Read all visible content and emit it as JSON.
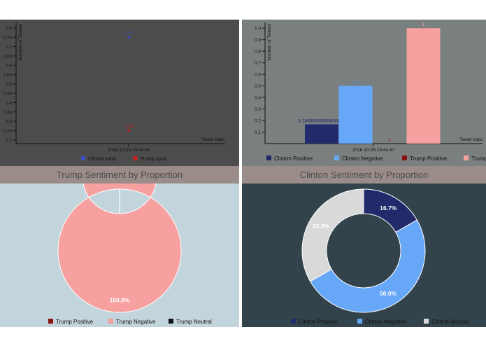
{
  "colors": {
    "clinton_total": "#3b4fc4",
    "trump_total": "#c42020",
    "clinton_positive": "#232a6c",
    "clinton_negative": "#66a8f7",
    "clinton_neutral": "#d9d9d9",
    "trump_positive": "#8b1212",
    "trump_negative": "#f7a0a0",
    "trump_neutral": "#111111"
  },
  "chart_data": [
    {
      "type": "scatter",
      "ylabel": "Number of Tweets",
      "xlabel": "Tweet topic",
      "x_ticks": [
        "2016-10-09 10:44:46"
      ],
      "y_ticks": [
        "0.2",
        "0.25",
        "0.3",
        "0.35",
        "0.4",
        "0.45",
        "0.5",
        "0.55",
        "0.6",
        "0.65",
        "0.7",
        "0.75",
        "0.8"
      ],
      "ylim": [
        0.18,
        0.83
      ],
      "series": [
        {
          "name": "Clinton total",
          "values": [
            0.75
          ],
          "label": "0.75"
        },
        {
          "name": "Trump total",
          "values": [
            0.25
          ],
          "label": "0.25"
        }
      ],
      "legend": "bottom"
    },
    {
      "type": "bar",
      "ylabel": "Number of Tweets",
      "xlabel": "Tweet topic",
      "x_ticks": [
        "2016-10-09 10:44:47"
      ],
      "y_ticks": [
        "0.1",
        "0.2",
        "0.3",
        "0.4",
        "0.5",
        "0.6",
        "0.7",
        "0.8",
        "0.9",
        "1.0"
      ],
      "ylim": [
        0,
        1.05
      ],
      "series": [
        {
          "name": "Clinton Positive",
          "values": [
            0.16666666666666666
          ],
          "label": "0.16666666666666666"
        },
        {
          "name": "Clinton Negative",
          "values": [
            0.5
          ],
          "label": "0.5"
        },
        {
          "name": "Trump Positive",
          "values": [
            0
          ],
          "label": "0"
        },
        {
          "name": "Trump Negative",
          "values": [
            1
          ],
          "label": "1"
        }
      ],
      "legend": "bottom"
    },
    {
      "type": "pie",
      "title": "Trump Sentiment by Proportion",
      "categories": [
        "Trump Positive",
        "Trump Negative",
        "Trump Neutral"
      ],
      "values": [
        0,
        100,
        0
      ],
      "labels": [
        "",
        "100.0%",
        ""
      ],
      "legend": "bottom"
    },
    {
      "type": "pie",
      "title": "Clinton Sentiment by Proportion",
      "categories": [
        "Clinton Positive",
        "Clinton Negative",
        "Clinton Neutral"
      ],
      "values": [
        16.7,
        50.0,
        33.3
      ],
      "labels": [
        "16.7%",
        "50.0%",
        "33.3%"
      ],
      "legend": "bottom"
    }
  ]
}
